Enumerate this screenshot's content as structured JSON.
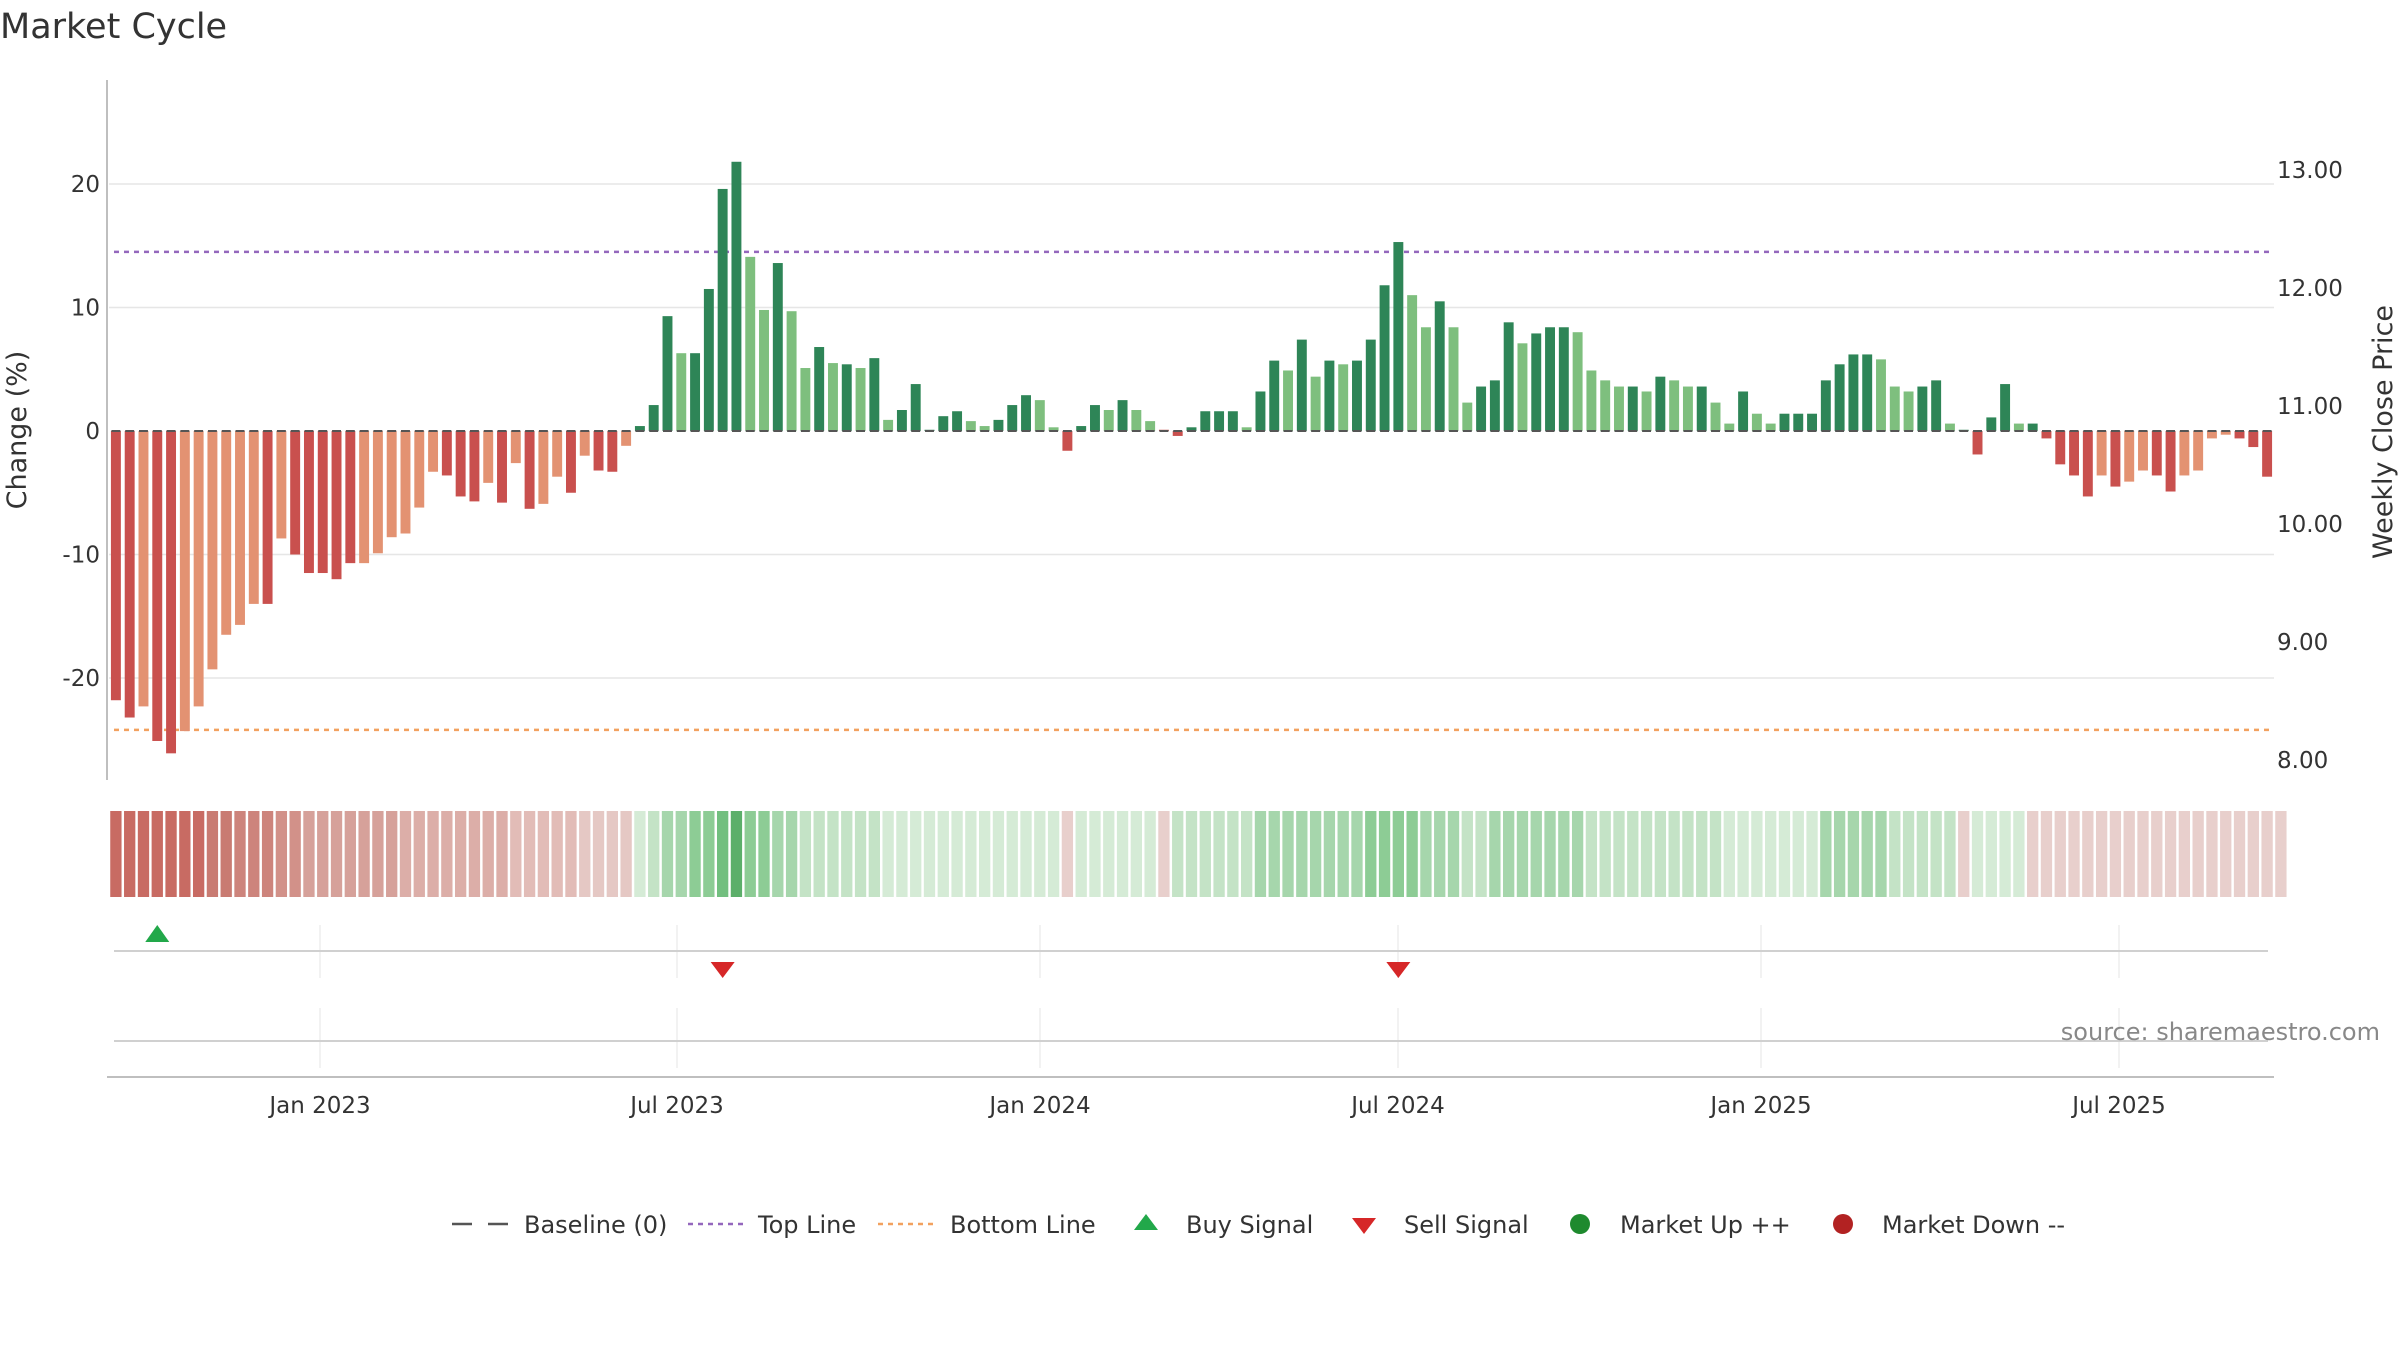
{
  "chart_data": {
    "type": "bar",
    "title": "Market Cycle",
    "ylabel": "Change (%)",
    "y2label": "Weekly Close Price",
    "ylim": [
      -28,
      29
    ],
    "y_ticks": [
      20,
      10,
      0,
      -10,
      -20
    ],
    "y2lim": [
      7.9,
      13.9
    ],
    "y2_ticks": [
      "13.00",
      "12.00",
      "11.00",
      "10.00",
      "9.00",
      "8.00"
    ],
    "top_line": 14.5,
    "bottom_line": -24.2,
    "x_ticks": [
      "Jan 2023",
      "Jul 2023",
      "Jan 2024",
      "Jul 2024",
      "Jan 2025",
      "Jul 2025"
    ],
    "source": "source: sharemaestro.com",
    "grid": true,
    "legend_position": "bottom",
    "legend": [
      "Baseline (0)",
      "Top Line",
      "Bottom Line",
      "Buy Signal",
      "Sell Signal",
      "Market Up ++",
      "Market Down --"
    ],
    "series": [
      {
        "values": [
          -21.8,
          -23.2,
          -22.3,
          -25.1,
          -26.1,
          -24.3,
          -22.3,
          -19.3,
          -16.5,
          -15.7,
          -14.0,
          -14.0,
          -8.7,
          -10.0,
          -11.5,
          -11.5,
          -12.0,
          -10.7,
          -10.7,
          -9.9,
          -8.6,
          -8.3,
          -6.2,
          -3.3,
          -3.6,
          -5.3,
          -5.7,
          -4.2,
          -5.8,
          -2.6,
          -6.3,
          -5.9,
          -3.7,
          -5.0,
          -2.0,
          -3.2,
          -3.3,
          -1.2,
          0.4,
          2.1,
          9.3,
          6.3,
          6.3,
          11.5,
          19.6,
          21.8,
          14.1,
          9.8,
          13.6,
          9.7,
          5.1,
          6.8,
          5.5,
          5.4,
          5.1,
          5.9,
          0.9,
          1.7,
          3.8,
          0.1,
          1.2,
          1.6,
          0.8,
          0.4,
          0.9,
          2.1,
          2.9,
          2.5,
          0.3,
          -1.6,
          0.4,
          2.1,
          1.7,
          2.5,
          1.7,
          0.8,
          0.1,
          -0.4,
          0.3,
          1.6,
          1.6,
          1.6,
          0.3,
          3.2,
          5.7,
          4.9,
          7.4,
          4.4,
          5.7,
          5.4,
          5.7,
          7.4,
          11.8,
          15.3,
          11.0,
          8.4,
          10.5,
          8.4,
          2.3,
          3.6,
          4.1,
          8.8,
          7.1,
          7.9,
          8.4,
          8.4,
          8.0,
          4.9,
          4.1,
          3.6,
          3.6,
          3.2,
          4.4,
          4.1,
          3.6,
          3.6,
          2.3,
          0.6,
          3.2,
          1.4,
          0.6,
          1.4,
          1.4,
          1.4,
          4.1,
          5.4,
          6.2,
          6.2,
          5.8,
          3.6,
          3.2,
          3.6,
          4.1,
          0.6,
          0.1,
          -1.9,
          1.1,
          3.8,
          0.6,
          0.6,
          -0.6,
          -2.7,
          -3.6,
          -5.3,
          -3.6,
          -4.5,
          -4.1,
          -3.2,
          -3.6,
          -4.9,
          -3.6,
          -3.2,
          -0.6,
          -0.3,
          -0.6,
          -1.3,
          -3.7
        ],
        "colors": [
          "#c9504e",
          "#c9504e",
          "#e39272",
          "#c9504e",
          "#c9504e",
          "#e39272",
          "#e39272",
          "#e39272",
          "#e39272",
          "#e39272",
          "#e39272",
          "#c9504e",
          "#e39272",
          "#c9504e",
          "#c9504e",
          "#c9504e",
          "#c9504e",
          "#c9504e",
          "#e39272",
          "#e39272",
          "#e39272",
          "#e39272",
          "#e39272",
          "#e39272",
          "#c9504e",
          "#c9504e",
          "#c9504e",
          "#e39272",
          "#c9504e",
          "#e39272",
          "#c9504e",
          "#e39272",
          "#e39272",
          "#c9504e",
          "#e39272",
          "#c9504e",
          "#c9504e",
          "#e39272",
          "#2e8557",
          "#2e8557",
          "#2e8557",
          "#7ebf7e",
          "#2e8557",
          "#2e8557",
          "#2e8557",
          "#2e8557",
          "#7ebf7e",
          "#7ebf7e",
          "#2e8557",
          "#7ebf7e",
          "#7ebf7e",
          "#2e8557",
          "#7ebf7e",
          "#2e8557",
          "#7ebf7e",
          "#2e8557",
          "#7ebf7e",
          "#2e8557",
          "#2e8557",
          "#2e8557",
          "#2e8557",
          "#2e8557",
          "#7ebf7e",
          "#7ebf7e",
          "#2e8557",
          "#2e8557",
          "#2e8557",
          "#7ebf7e",
          "#7ebf7e",
          "#c9504e",
          "#2e8557",
          "#2e8557",
          "#7ebf7e",
          "#2e8557",
          "#7ebf7e",
          "#7ebf7e",
          "#c9504e",
          "#c9504e",
          "#2e8557",
          "#2e8557",
          "#2e8557",
          "#2e8557",
          "#7ebf7e",
          "#2e8557",
          "#2e8557",
          "#7ebf7e",
          "#2e8557",
          "#7ebf7e",
          "#2e8557",
          "#7ebf7e",
          "#2e8557",
          "#2e8557",
          "#2e8557",
          "#2e8557",
          "#7ebf7e",
          "#7ebf7e",
          "#2e8557",
          "#7ebf7e",
          "#7ebf7e",
          "#2e8557",
          "#2e8557",
          "#2e8557",
          "#7ebf7e",
          "#2e8557",
          "#2e8557",
          "#2e8557",
          "#7ebf7e",
          "#7ebf7e",
          "#7ebf7e",
          "#7ebf7e",
          "#2e8557",
          "#7ebf7e",
          "#2e8557",
          "#7ebf7e",
          "#7ebf7e",
          "#2e8557",
          "#7ebf7e",
          "#7ebf7e",
          "#2e8557",
          "#7ebf7e",
          "#7ebf7e",
          "#2e8557",
          "#2e8557",
          "#2e8557",
          "#2e8557",
          "#2e8557",
          "#2e8557",
          "#2e8557",
          "#7ebf7e",
          "#7ebf7e",
          "#7ebf7e",
          "#2e8557",
          "#2e8557",
          "#7ebf7e",
          "#2e8557",
          "#c9504e",
          "#2e8557",
          "#2e8557",
          "#7ebf7e",
          "#2e8557",
          "#c9504e",
          "#c9504e",
          "#c9504e",
          "#c9504e",
          "#e39272",
          "#c9504e",
          "#e39272",
          "#e39272",
          "#c9504e",
          "#c9504e",
          "#e39272",
          "#e39272",
          "#e39272",
          "#e39272",
          "#c9504e",
          "#c9504e",
          "#c9504e"
        ]
      }
    ],
    "heat_strip": {
      "colors": [
        "#c86b63",
        "#c86b63",
        "#c86b63",
        "#c86b63",
        "#c86b63",
        "#c86b63",
        "#c86b63",
        "#c97b72",
        "#c97b72",
        "#cd847c",
        "#cd847c",
        "#cd847c",
        "#d29189",
        "#d29189",
        "#d6a19a",
        "#d6a19a",
        "#d6a19a",
        "#d6a19a",
        "#d6a19a",
        "#d6a19a",
        "#d6a19a",
        "#dcaea8",
        "#dcaea8",
        "#dcaea8",
        "#dcaea8",
        "#dcaea8",
        "#dcaea8",
        "#dcaea8",
        "#dcaea8",
        "#e2bcb7",
        "#e2bcb7",
        "#e2bcb7",
        "#e2bcb7",
        "#e2bcb7",
        "#e5c8c4",
        "#e5c8c4",
        "#e5c8c4",
        "#e5c8c4",
        "#d5ebd6",
        "#c4e3c6",
        "#a6d6ac",
        "#a6d6ac",
        "#8dcc95",
        "#8dcc95",
        "#72bf7f",
        "#5caf6a",
        "#8dcc95",
        "#8dcc95",
        "#a6d6ac",
        "#a6d6ac",
        "#c4e3c6",
        "#c4e3c6",
        "#c4e3c6",
        "#c4e3c6",
        "#c4e3c6",
        "#c4e3c6",
        "#d5ebd6",
        "#d5ebd6",
        "#d5ebd6",
        "#d5ebd6",
        "#d5ebd6",
        "#d5ebd6",
        "#d5ebd6",
        "#d5ebd6",
        "#d5ebd6",
        "#d5ebd6",
        "#d5ebd6",
        "#d5ebd6",
        "#d5ebd6",
        "#e8cfcc",
        "#d5ebd6",
        "#d5ebd6",
        "#d5ebd6",
        "#d5ebd6",
        "#d5ebd6",
        "#d5ebd6",
        "#e8cfcc",
        "#c4e3c6",
        "#c4e3c6",
        "#c4e3c6",
        "#c4e3c6",
        "#c4e3c6",
        "#c4e3c6",
        "#a6d6ac",
        "#a6d6ac",
        "#a6d6ac",
        "#a6d6ac",
        "#a6d6ac",
        "#a6d6ac",
        "#a6d6ac",
        "#a6d6ac",
        "#8dcc95",
        "#8dcc95",
        "#8dcc95",
        "#8dcc95",
        "#a6d6ac",
        "#a6d6ac",
        "#a6d6ac",
        "#c4e3c6",
        "#c4e3c6",
        "#a6d6ac",
        "#a6d6ac",
        "#a6d6ac",
        "#a6d6ac",
        "#a6d6ac",
        "#a6d6ac",
        "#a6d6ac",
        "#c4e3c6",
        "#c4e3c6",
        "#c4e3c6",
        "#c4e3c6",
        "#c4e3c6",
        "#c4e3c6",
        "#c4e3c6",
        "#c4e3c6",
        "#c4e3c6",
        "#c4e3c6",
        "#d5ebd6",
        "#d5ebd6",
        "#d5ebd6",
        "#d5ebd6",
        "#d5ebd6",
        "#d5ebd6",
        "#d5ebd6",
        "#a6d6ac",
        "#a6d6ac",
        "#a6d6ac",
        "#a6d6ac",
        "#a6d6ac",
        "#c4e3c6",
        "#c4e3c6",
        "#c4e3c6",
        "#c4e3c6",
        "#c4e3c6",
        "#e8cfcc",
        "#d5ebd6",
        "#d5ebd6",
        "#d5ebd6",
        "#d5ebd6",
        "#e8cfcc",
        "#e8cfcc",
        "#e8cfcc",
        "#e8cfcc",
        "#e8cfcc",
        "#e8cfcc",
        "#e8cfcc",
        "#e8cfcc",
        "#e8cfcc",
        "#e8cfcc",
        "#e8cfcc",
        "#e8cfcc",
        "#e8cfcc",
        "#e8cfcc",
        "#e8cfcc",
        "#e8cfcc",
        "#e8cfcc",
        "#e8cfcc",
        "#e8cfcc"
      ]
    },
    "buy_signals": [
      3
    ],
    "sell_signals": [
      44,
      93
    ],
    "colors": {
      "top_line": "#9467bd",
      "bottom_line": "#f2a15f",
      "buy": "#22a84a",
      "sell": "#d62728",
      "market_up": "#1e8a2e",
      "market_down": "#b22222",
      "baseline": "#555555",
      "grid": "#e6e6e6",
      "axis": "#bfbfbf"
    }
  }
}
